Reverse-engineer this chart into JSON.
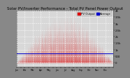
{
  "title": "Solar PV/Inverter Performance - Total PV Panel Power Output",
  "fig_bg_color": "#888888",
  "plot_bg_color": "#d8d8d8",
  "bar_color": "#dd0000",
  "line_color": "#0000cc",
  "grid_color": "#ffffff",
  "ylim_min": -300,
  "ylim_max": 4000,
  "blue_line_y": 700,
  "n_days": 365,
  "samples_per_day": 24,
  "title_fontsize": 4.0,
  "tick_fontsize": 2.8,
  "legend_fontsize": 2.8,
  "legend_labels": [
    "PV Output",
    "Average"
  ],
  "legend_colors": [
    "#dd0000",
    "#0000cc"
  ],
  "yticks": [
    0,
    500,
    1000,
    1500,
    2000,
    2500,
    3000,
    3500,
    4000
  ],
  "ytick_labels": [
    "0",
    "500",
    "1k",
    "1.5k",
    "2k",
    "2.5k",
    "3k",
    "3.5k",
    "4k"
  ]
}
